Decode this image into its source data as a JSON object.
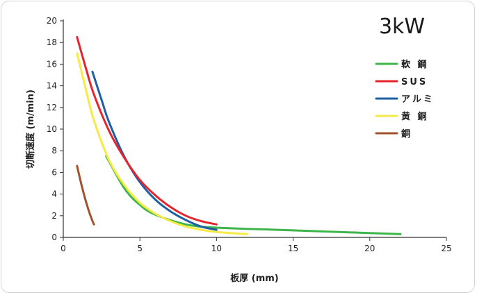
{
  "chart_data": {
    "type": "line",
    "title": "3kW",
    "xlabel": "板厚 (mm)",
    "ylabel": "切断速度 (m/min)",
    "xlim": [
      0,
      25
    ],
    "ylim": [
      0,
      20
    ],
    "x_ticks": [
      0,
      5,
      10,
      15,
      20,
      25
    ],
    "y_ticks": [
      0,
      2,
      4,
      6,
      8,
      10,
      12,
      14,
      16,
      18,
      20
    ],
    "grid": false,
    "legend_position": "top-right",
    "series": [
      {
        "name": "軟 鋼",
        "color": "#3cb54a",
        "points": [
          [
            2.8,
            7.5
          ],
          [
            4,
            4.5
          ],
          [
            5,
            3.0
          ],
          [
            6,
            2.1
          ],
          [
            8,
            1.2
          ],
          [
            10,
            0.9
          ],
          [
            14,
            0.7
          ],
          [
            18,
            0.5
          ],
          [
            22,
            0.3
          ]
        ]
      },
      {
        "name": "SUS",
        "color": "#e5242b",
        "points": [
          [
            0.9,
            18.5
          ],
          [
            1.5,
            15.5
          ],
          [
            2,
            13.2
          ],
          [
            3,
            9.8
          ],
          [
            4,
            7.3
          ],
          [
            5,
            5.3
          ],
          [
            6,
            3.9
          ],
          [
            7,
            2.8
          ],
          [
            8,
            2.0
          ],
          [
            9,
            1.5
          ],
          [
            10,
            1.2
          ]
        ]
      },
      {
        "name": "アルミ",
        "color": "#1f5fa3",
        "points": [
          [
            1.9,
            15.3
          ],
          [
            2.5,
            12.7
          ],
          [
            3,
            10.6
          ],
          [
            4,
            7.4
          ],
          [
            5,
            5.1
          ],
          [
            6,
            3.5
          ],
          [
            7,
            2.4
          ],
          [
            8,
            1.6
          ],
          [
            9,
            1.0
          ],
          [
            10,
            0.7
          ]
        ]
      },
      {
        "name": "黄 銅",
        "color": "#f6eb46",
        "points": [
          [
            0.9,
            17.0
          ],
          [
            1.5,
            13.5
          ],
          [
            2,
            10.8
          ],
          [
            3,
            7.1
          ],
          [
            4,
            4.8
          ],
          [
            5,
            3.2
          ],
          [
            6,
            2.2
          ],
          [
            7,
            1.5
          ],
          [
            8,
            1.0
          ],
          [
            9,
            0.7
          ],
          [
            10,
            0.5
          ],
          [
            12,
            0.3
          ]
        ]
      },
      {
        "name": "銅",
        "color": "#a0522d",
        "points": [
          [
            0.9,
            6.6
          ],
          [
            1.2,
            4.8
          ],
          [
            1.5,
            3.2
          ],
          [
            1.8,
            1.9
          ],
          [
            2.0,
            1.2
          ]
        ]
      }
    ]
  }
}
